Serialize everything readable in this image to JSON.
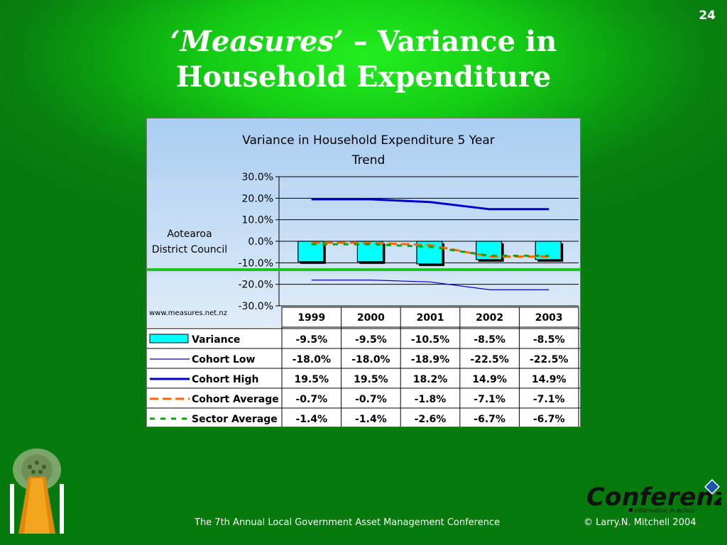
{
  "slide": {
    "page_number": "24",
    "title_italic": "‘Measures’",
    "title_rest": " – Variance in",
    "title_line2": "Household Expenditure",
    "footer_left": "The 7th Annual Local Government Asset Management Conference",
    "footer_right": "© Larry.N. Mitchell 2004",
    "logo_text": "Conferenz",
    "logo_tagline": "Information in action"
  },
  "chart_data": {
    "type": "line",
    "title_line1": "Variance in Household Expenditure 5 Year",
    "title_line2": "Trend",
    "entity_line1": "Aotearoa",
    "entity_line2": "District Council",
    "source": "www.measures.net.nz",
    "categories": [
      "1999",
      "2000",
      "2001",
      "2002",
      "2003"
    ],
    "ylim": [
      -30,
      30
    ],
    "yticks": [
      "30.0%",
      "20.0%",
      "10.0%",
      "0.0%",
      "-10.0%",
      "-20.0%",
      "-30.0%"
    ],
    "ytick_values": [
      30,
      20,
      10,
      0,
      -10,
      -20,
      -30
    ],
    "series": [
      {
        "name": "Variance",
        "kind": "bar",
        "color": "#00ffff",
        "values": [
          -9.5,
          -9.5,
          -10.5,
          -8.5,
          -8.5
        ],
        "labels": [
          "-9.5%",
          "-9.5%",
          "-10.5%",
          "-8.5%",
          "-8.5%"
        ]
      },
      {
        "name": "Cohort Low",
        "kind": "line",
        "color": "#0000cc",
        "style": "thin",
        "values": [
          -18.0,
          -18.0,
          -18.9,
          -22.5,
          -22.5
        ],
        "labels": [
          "-18.0%",
          "-18.0%",
          "-18.9%",
          "-22.5%",
          "-22.5%"
        ]
      },
      {
        "name": "Cohort High",
        "kind": "line",
        "color": "#0000cc",
        "style": "thick",
        "values": [
          19.5,
          19.5,
          18.2,
          14.9,
          14.9
        ],
        "labels": [
          "19.5%",
          "19.5%",
          "18.2%",
          "14.9%",
          "14.9%"
        ]
      },
      {
        "name": "Cohort Average",
        "kind": "line",
        "color": "#ff6600",
        "style": "dash",
        "values": [
          -0.7,
          -0.7,
          -1.8,
          -7.1,
          -7.1
        ],
        "labels": [
          "-0.7%",
          "-0.7%",
          "-1.8%",
          "-7.1%",
          "-7.1%"
        ]
      },
      {
        "name": "Sector Average",
        "kind": "line",
        "color": "#00aa00",
        "style": "dash-small",
        "values": [
          -1.4,
          -1.4,
          -2.6,
          -6.7,
          -6.7
        ],
        "labels": [
          "-1.4%",
          "-1.4%",
          "-2.6%",
          "-6.7%",
          "-6.7%"
        ]
      }
    ]
  }
}
